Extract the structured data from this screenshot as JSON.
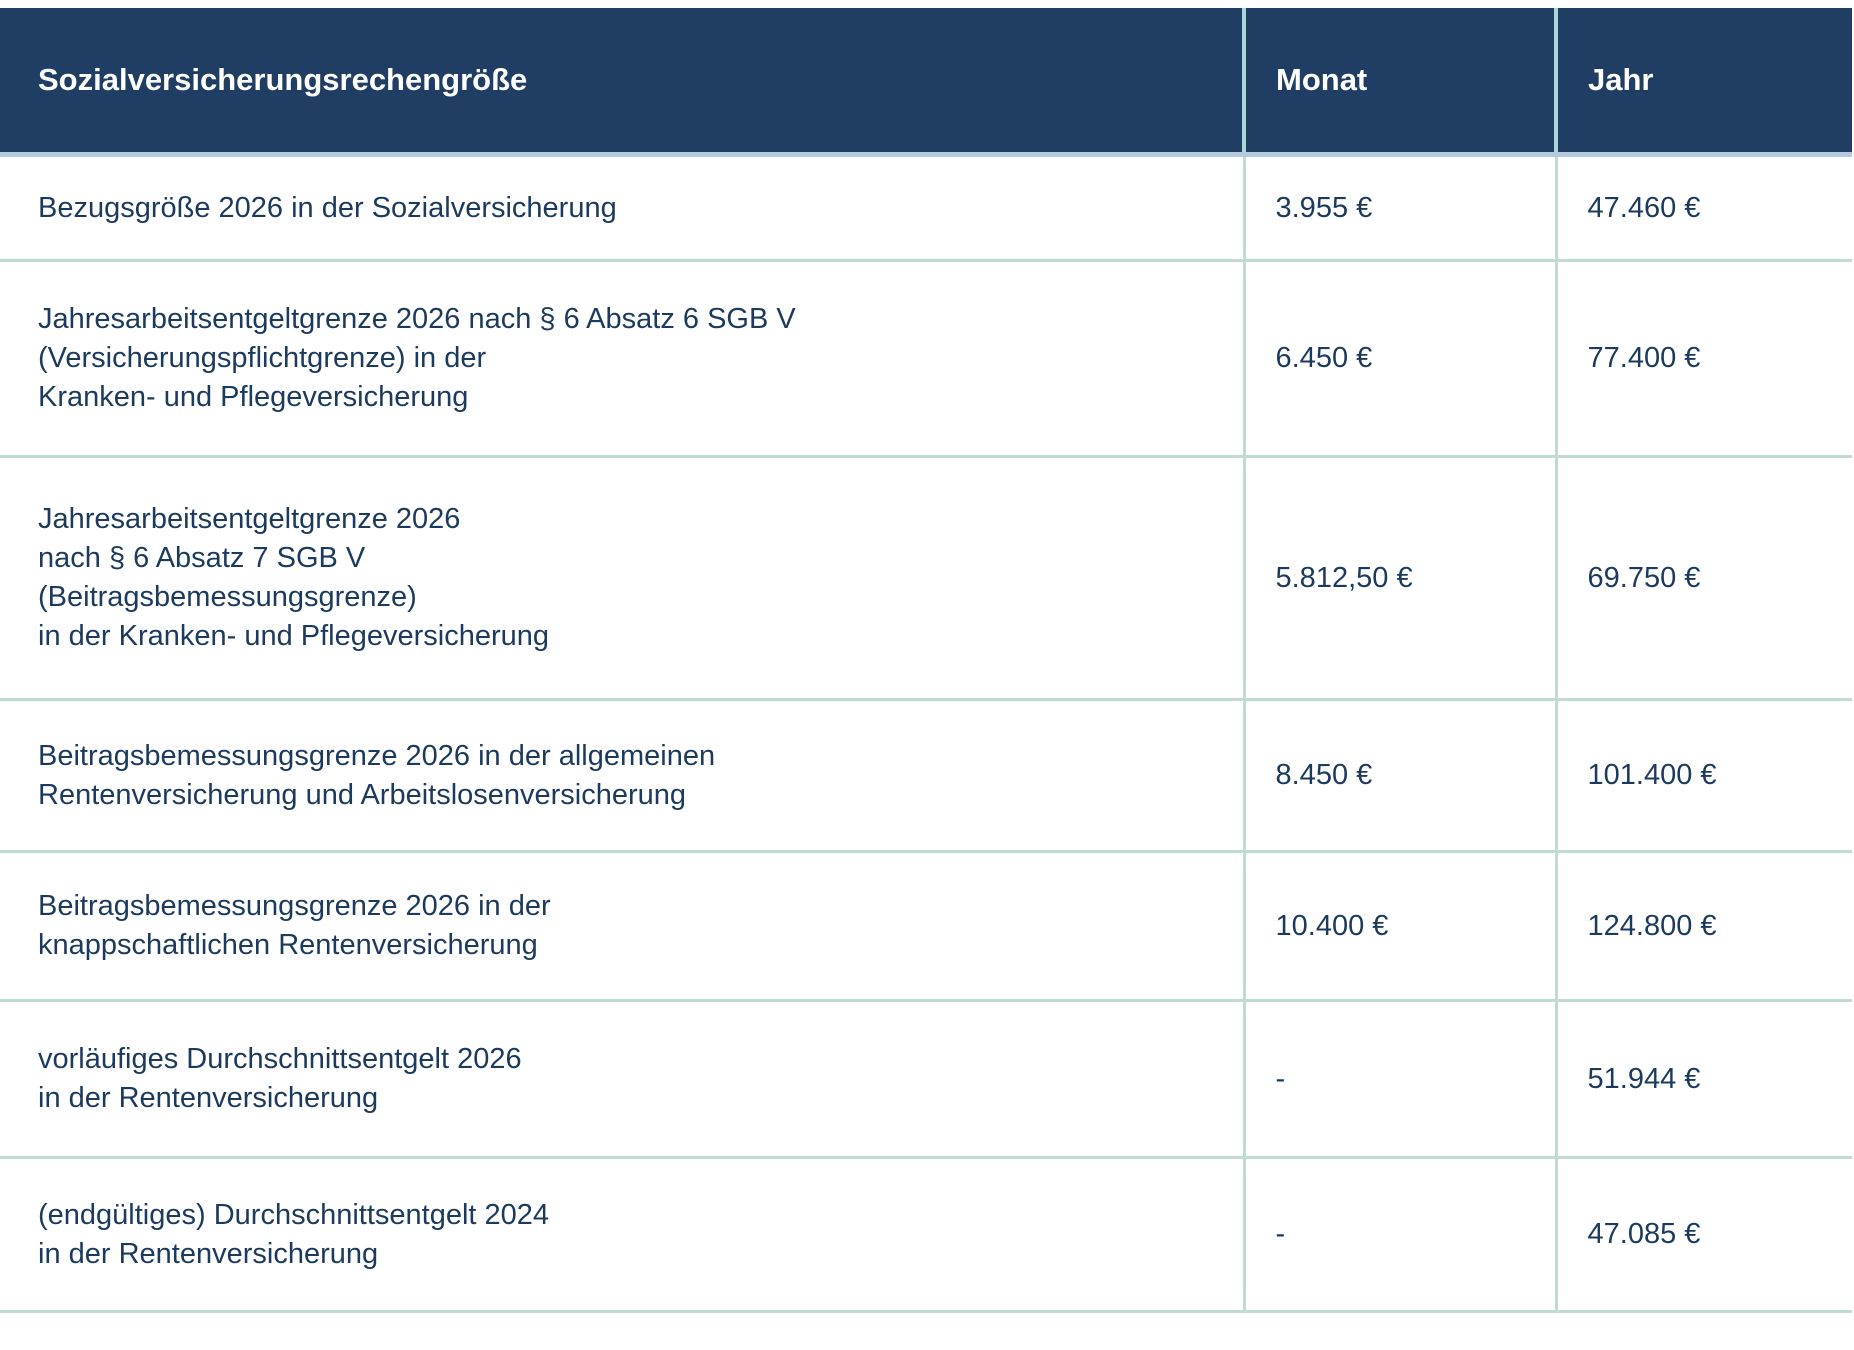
{
  "table": {
    "title_column_header": "Sozialversicherungsrechengröße",
    "monat_column_header": "Monat",
    "jahr_column_header": "Jahr",
    "rows": [
      {
        "label": "Bezugsgröße 2026 in der Sozialversicherung",
        "monat": "3.955 €",
        "jahr": "47.460 €"
      },
      {
        "label": "Jahresarbeitsentgeltgrenze 2026 nach § 6 Absatz 6 SGB V\n(Versicherungspflichtgrenze) in der\nKranken- und Pflegeversicherung",
        "monat": "6.450 €",
        "jahr": "77.400 €"
      },
      {
        "label": "Jahresarbeitsentgeltgrenze 2026\nnach § 6 Absatz 7 SGB V\n(Beitragsbemessungsgrenze)\nin der Kranken- und Pflegeversicherung",
        "monat": "5.812,50 €",
        "jahr": "69.750 €"
      },
      {
        "label": "Beitragsbemessungsgrenze 2026 in der allgemeinen\nRentenversicherung und Arbeitslosenversicherung",
        "monat": "8.450 €",
        "jahr": "101.400 €"
      },
      {
        "label": "Beitragsbemessungsgrenze 2026 in der\nknappschaftlichen Rentenversicherung",
        "monat": "10.400 €",
        "jahr": "124.800 €"
      },
      {
        "label": "vorläufiges Durchschnittsentgelt 2026\nin der Rentenversicherung",
        "monat": "-",
        "jahr": "51.944 €"
      },
      {
        "label": "(endgültiges) Durchschnittsentgelt 2024\nin der Rentenversicherung",
        "monat": "-",
        "jahr": "47.085 €"
      }
    ],
    "colors": {
      "header_background": "#203D63",
      "header_text": "#FFFFFF",
      "body_text": "#1C3A5E",
      "row_separator": "#BEDBD4",
      "header_column_separator": "#ABD7D9",
      "header_bottom_border": "#B5CADD"
    }
  }
}
